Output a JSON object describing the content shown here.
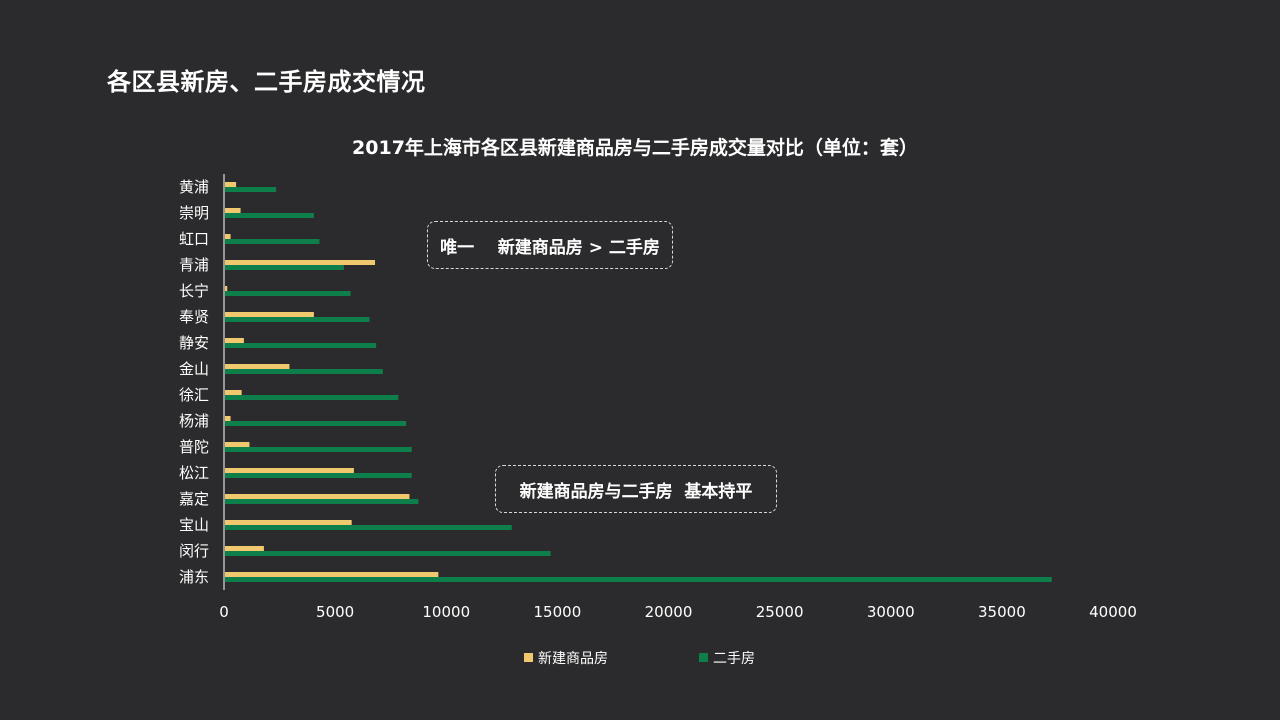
{
  "page": {
    "title": "各区县新房、二手房成交情况"
  },
  "callouts": {
    "top": "唯一    新建商品房 > 二手房",
    "bottom": "新建商品房与二手房  基本持平"
  },
  "chart_data": {
    "type": "bar",
    "orientation": "horizontal",
    "title": "2017年上海市各区县新建商品房与二手房成交量对比（单位：套）",
    "categories": [
      "黄浦",
      "崇明",
      "虹口",
      "青浦",
      "长宁",
      "奉贤",
      "静安",
      "金山",
      "徐汇",
      "杨浦",
      "普陀",
      "松江",
      "嘉定",
      "宝山",
      "闵行",
      "浦东"
    ],
    "series": [
      {
        "name": "新建商品房",
        "color": "#f0c96e",
        "values": [
          500,
          700,
          250,
          6750,
          100,
          4000,
          850,
          2900,
          750,
          250,
          1100,
          5800,
          8300,
          5700,
          1750,
          9600
        ]
      },
      {
        "name": "二手房",
        "color": "#0e7f4a",
        "values": [
          2300,
          4000,
          4250,
          5350,
          5650,
          6500,
          6800,
          7100,
          7800,
          8150,
          8400,
          8400,
          8700,
          12900,
          14650,
          37200
        ]
      }
    ],
    "xlim": [
      0,
      40000
    ],
    "xticks": [
      "0",
      "5000",
      "10000",
      "15000",
      "20000",
      "25000",
      "30000",
      "35000",
      "40000"
    ],
    "legend": "bottom",
    "grid": false
  }
}
